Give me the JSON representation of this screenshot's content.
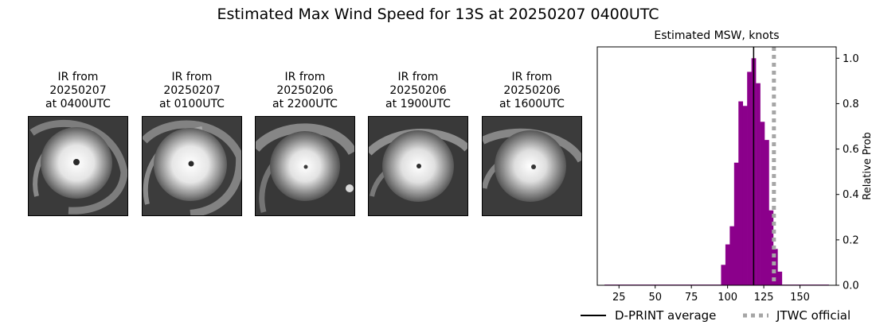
{
  "title": "Estimated Max Wind Speed for 13S at 20250207 0400UTC",
  "ir_panels": [
    {
      "line1": "IR from",
      "line2": "20250207",
      "line3": "at 0400UTC"
    },
    {
      "line1": "IR from",
      "line2": "20250207",
      "line3": "at 0100UTC"
    },
    {
      "line1": "IR from",
      "line2": "20250206",
      "line3": "at 2200UTC"
    },
    {
      "line1": "IR from",
      "line2": "20250206",
      "line3": "at 1900UTC"
    },
    {
      "line1": "IR from",
      "line2": "20250206",
      "line3": "at 1600UTC"
    }
  ],
  "chart_data": {
    "type": "bar",
    "title": "Estimated MSW, knots",
    "xlabel": "",
    "ylabel": "Relative Prob",
    "xlim": [
      10,
      175
    ],
    "ylim": [
      0,
      1.05
    ],
    "xticks": [
      25,
      50,
      75,
      100,
      125,
      150
    ],
    "yticks": [
      0.0,
      0.2,
      0.4,
      0.6,
      0.8,
      1.0
    ],
    "y_axis_side": "right",
    "bar_width": 3,
    "bar_color": "#8b008b",
    "bars": [
      {
        "x": 97,
        "value": 0.09
      },
      {
        "x": 100,
        "value": 0.18
      },
      {
        "x": 103,
        "value": 0.26
      },
      {
        "x": 106,
        "value": 0.54
      },
      {
        "x": 109,
        "value": 0.81
      },
      {
        "x": 112,
        "value": 0.79
      },
      {
        "x": 115,
        "value": 0.94
      },
      {
        "x": 118,
        "value": 1.0
      },
      {
        "x": 121,
        "value": 0.89
      },
      {
        "x": 124,
        "value": 0.72
      },
      {
        "x": 127,
        "value": 0.64
      },
      {
        "x": 130,
        "value": 0.33
      },
      {
        "x": 133,
        "value": 0.16
      },
      {
        "x": 136,
        "value": 0.06
      }
    ],
    "baseline_segments": [
      {
        "from": 15,
        "to": 96,
        "value": 0.003
      },
      {
        "from": 137.5,
        "to": 170,
        "value": 0.003
      }
    ],
    "lines": [
      {
        "name": "D-PRINT average",
        "x": 118,
        "color": "#000000",
        "style": "solid"
      },
      {
        "name": "JTWC official",
        "x": 132,
        "color": "#a6a6a6",
        "style": "dotted"
      }
    ],
    "legend": {
      "placement": "bottom",
      "entries": [
        "D-PRINT average",
        "JTWC official"
      ]
    }
  }
}
